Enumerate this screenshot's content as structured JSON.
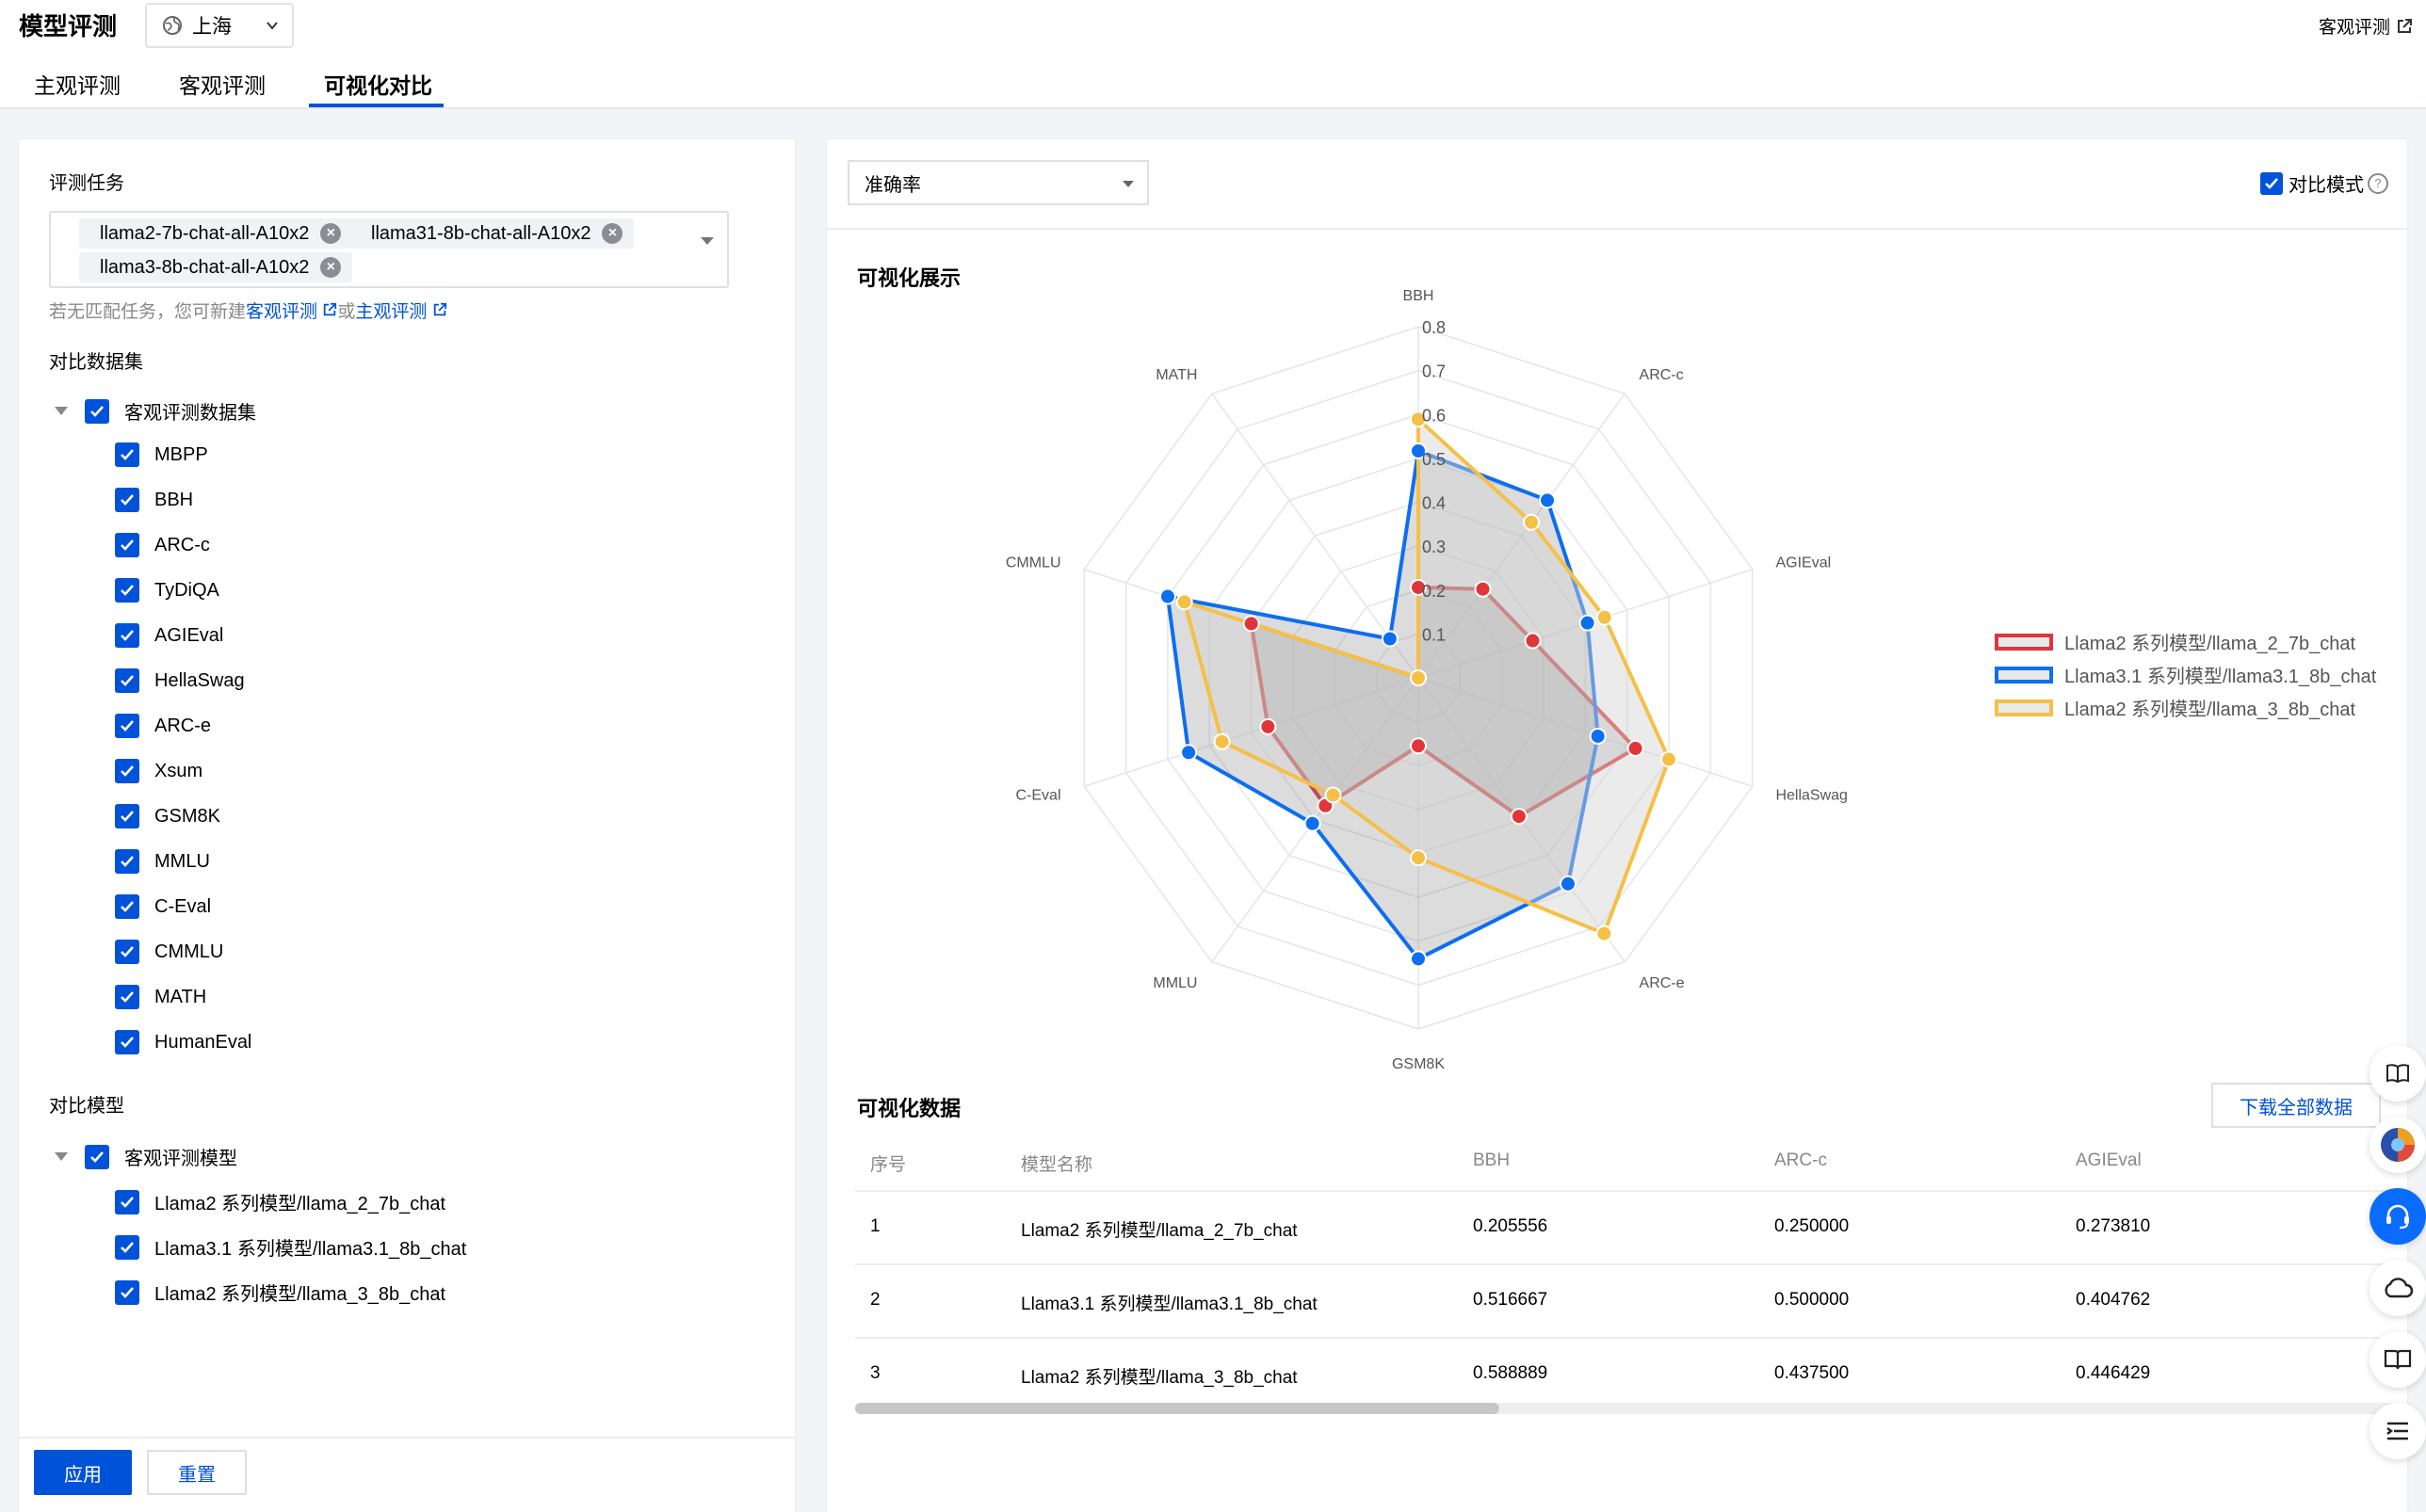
{
  "header": {
    "title": "模型评测",
    "region": "上海",
    "top_link": "客观评测",
    "tabs": [
      "主观评测",
      "客观评测",
      "可视化对比"
    ],
    "active_tab": 2
  },
  "left": {
    "task_label": "评测任务",
    "tasks": [
      "llama2-7b-chat-all-A10x2",
      "llama31-8b-chat-all-A10x2",
      "llama3-8b-chat-all-A10x2"
    ],
    "hint_prefix": "若无匹配任务，您可新建",
    "hint_link1": "客观评测",
    "hint_or": "或",
    "hint_link2": "主观评测",
    "dataset_label": "对比数据集",
    "dataset_group": "客观评测数据集",
    "datasets": [
      "MBPP",
      "BBH",
      "ARC-c",
      "TyDiQA",
      "AGIEval",
      "HellaSwag",
      "ARC-e",
      "Xsum",
      "GSM8K",
      "MMLU",
      "C-Eval",
      "CMMLU",
      "MATH",
      "HumanEval"
    ],
    "model_label": "对比模型",
    "model_group": "客观评测模型",
    "models": [
      "Llama2 系列模型/llama_2_7b_chat",
      "Llama3.1 系列模型/llama3.1_8b_chat",
      "Llama2 系列模型/llama_3_8b_chat"
    ],
    "apply_label": "应用",
    "reset_label": "重置"
  },
  "right": {
    "metric": "准确率",
    "compare_label": "对比模式",
    "viz_title": "可视化展示",
    "data_title": "可视化数据",
    "download_label": "下载全部数据",
    "table": {
      "headers": [
        "序号",
        "模型名称",
        "BBH",
        "ARC-c",
        "AGIEval"
      ],
      "rows": [
        [
          "1",
          "Llama2 系列模型/llama_2_7b_chat",
          "0.205556",
          "0.250000",
          "0.273810"
        ],
        [
          "2",
          "Llama3.1 系列模型/llama3.1_8b_chat",
          "0.516667",
          "0.500000",
          "0.404762"
        ],
        [
          "3",
          "Llama2 系列模型/llama_3_8b_chat",
          "0.588889",
          "0.437500",
          "0.446429"
        ]
      ]
    }
  },
  "chart_data": {
    "type": "radar",
    "axes": [
      "BBH",
      "ARC-c",
      "AGIEval",
      "HellaSwag",
      "ARC-e",
      "GSM8K",
      "MMLU",
      "C-Eval",
      "CMMLU",
      "MATH"
    ],
    "ticks": [
      "0.1",
      "0.2",
      "0.3",
      "0.4",
      "0.5",
      "0.6",
      "0.7",
      "0.8"
    ],
    "range": [
      0,
      0.8
    ],
    "series": [
      {
        "name": "Llama2 系列模型/llama_2_7b_chat",
        "color": "#e0363a",
        "values": [
          0.206,
          0.25,
          0.274,
          0.52,
          0.39,
          0.155,
          0.36,
          0.36,
          0.4,
          0.0
        ]
      },
      {
        "name": "Llama3.1 系列模型/llama3.1_8b_chat",
        "color": "#0d6ef0",
        "values": [
          0.517,
          0.5,
          0.405,
          0.43,
          0.58,
          0.64,
          0.41,
          0.55,
          0.6,
          0.11
        ]
      },
      {
        "name": "Llama2 系列模型/llama_3_8b_chat",
        "color": "#f5c047",
        "values": [
          0.589,
          0.438,
          0.446,
          0.6,
          0.72,
          0.41,
          0.33,
          0.47,
          0.56,
          0.0
        ]
      }
    ],
    "legend": "right"
  }
}
